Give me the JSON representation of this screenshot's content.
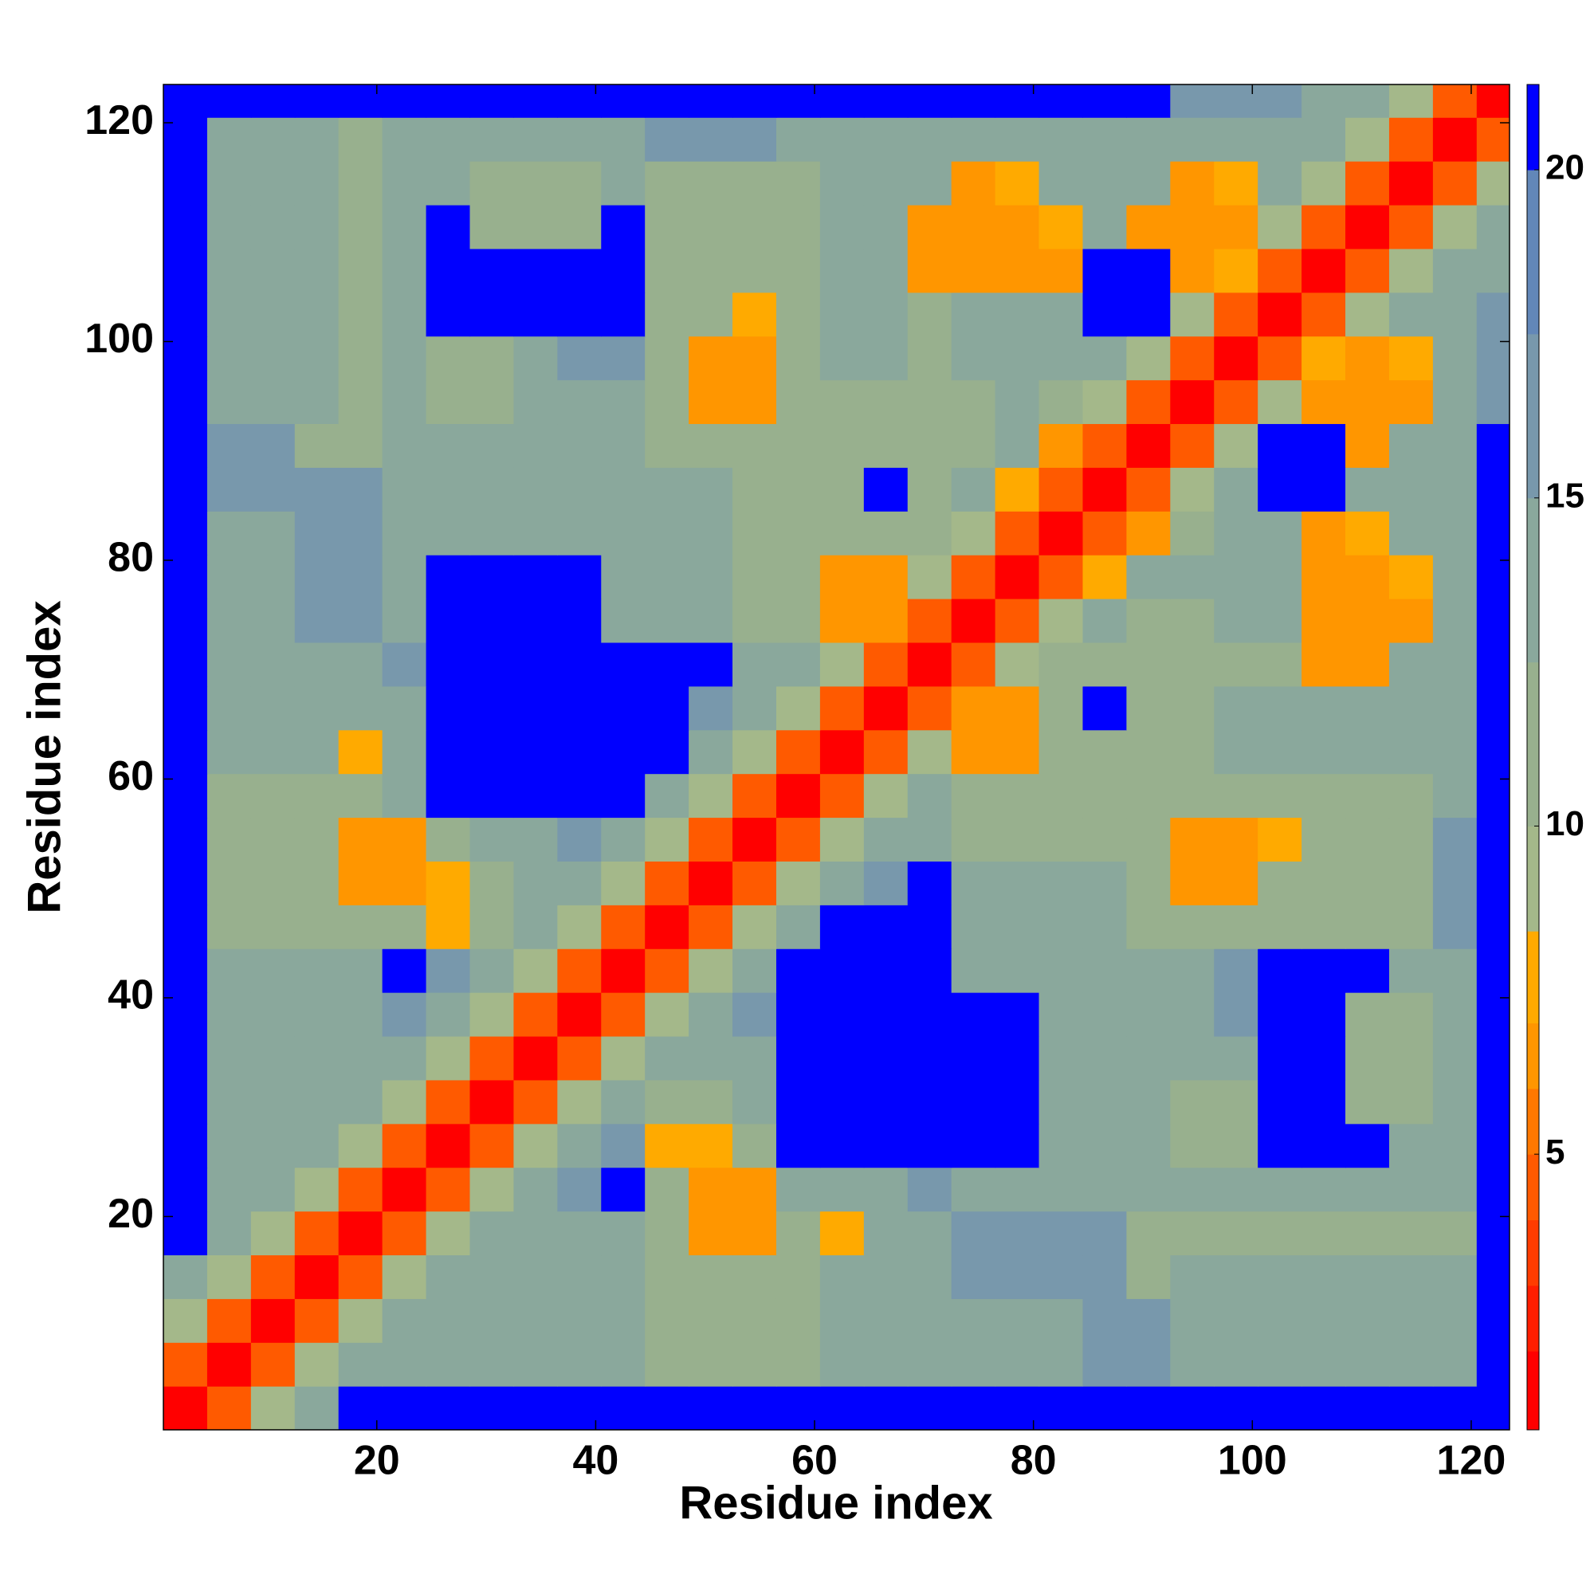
{
  "chart_data": {
    "type": "heatmap",
    "xlabel": "Residue index",
    "ylabel": "Residue index",
    "xlim": [
      0.5,
      123.5
    ],
    "ylim": [
      0.5,
      123.5
    ],
    "xticks": [
      20,
      40,
      60,
      80,
      100,
      120
    ],
    "yticks": [
      20,
      40,
      60,
      80,
      100,
      120
    ],
    "bins": [
      0.5,
      4.5,
      8.5,
      12.5,
      16.5,
      20.5,
      24.5,
      28.5,
      32.5,
      36.5,
      40.5,
      44.5,
      48.5,
      52.5,
      56.5,
      60.5,
      64.5,
      68.5,
      72.5,
      76.5,
      80.5,
      84.5,
      88.5,
      92.5,
      96.5,
      100.5,
      104.5,
      108.5,
      112.5,
      116.5,
      120.5,
      124.5
    ],
    "colorbar": {
      "lim": [
        0.8,
        21.3
      ],
      "ticks": [
        5,
        10,
        15,
        20
      ],
      "stops": [
        {
          "to": 2,
          "color": "#ff0000"
        },
        {
          "to": 3,
          "color": "#ff1e00"
        },
        {
          "to": 4,
          "color": "#ff3c00"
        },
        {
          "to": 5,
          "color": "#ff5a00"
        },
        {
          "to": 6,
          "color": "#ff7800"
        },
        {
          "to": 7,
          "color": "#ff9600"
        },
        {
          "to": 8.4,
          "color": "#ffaa00"
        },
        {
          "to": 10,
          "color": "#a4b88a"
        },
        {
          "to": 12.5,
          "color": "#98b08e"
        },
        {
          "to": 15,
          "color": "#8aa89c"
        },
        {
          "to": 17.5,
          "color": "#7898ac"
        },
        {
          "to": 20,
          "color": "#6287b8"
        },
        {
          "to": 21.3,
          "color": "#0000ff"
        }
      ]
    },
    "z": [
      [
        2,
        5,
        10,
        15,
        21,
        21,
        21,
        21,
        21,
        21,
        21,
        21,
        21,
        21,
        21,
        21,
        21,
        21,
        21,
        21,
        21,
        21,
        21,
        21,
        21,
        21,
        21,
        21,
        21,
        21,
        21
      ],
      [
        5,
        2,
        5,
        10,
        15,
        13,
        13,
        13,
        13,
        13,
        13,
        12,
        12,
        12,
        12,
        13,
        13,
        13,
        14,
        14,
        14,
        16,
        16,
        13,
        13,
        13,
        13,
        13,
        13,
        13,
        21
      ],
      [
        10,
        5,
        2,
        5,
        10,
        15,
        13,
        13,
        13,
        13,
        13,
        12,
        12,
        12,
        12,
        13,
        13,
        13,
        14,
        14,
        14,
        16,
        16,
        13,
        13,
        13,
        13,
        13,
        13,
        13,
        21
      ],
      [
        15,
        10,
        5,
        2,
        5,
        10,
        15,
        13,
        13,
        13,
        13,
        12,
        12,
        12,
        12,
        13,
        13,
        13,
        16,
        16,
        16,
        16,
        12,
        13,
        13,
        13,
        13,
        13,
        13,
        13,
        21
      ],
      [
        21,
        15,
        10,
        5,
        2,
        5,
        10,
        15,
        13,
        13,
        13,
        12,
        7,
        7,
        12,
        8,
        13,
        13,
        16,
        16,
        16,
        16,
        12,
        12,
        12,
        12,
        12,
        12,
        12,
        12,
        21
      ],
      [
        21,
        13,
        15,
        10,
        5,
        2,
        5,
        10,
        15,
        16,
        21,
        12,
        7,
        7,
        13,
        14,
        15,
        16,
        15,
        15,
        15,
        15,
        15,
        13,
        13,
        13,
        13,
        13,
        13,
        13,
        21
      ],
      [
        21,
        13,
        13,
        15,
        10,
        5,
        2,
        5,
        10,
        15,
        16,
        8,
        8,
        12,
        21,
        21,
        21,
        21,
        21,
        21,
        13,
        13,
        13,
        12,
        12,
        21,
        21,
        21,
        13,
        13,
        21
      ],
      [
        21,
        13,
        13,
        13,
        15,
        10,
        5,
        2,
        5,
        10,
        14,
        12,
        12,
        13,
        21,
        21,
        21,
        21,
        21,
        21,
        13,
        13,
        13,
        12,
        12,
        21,
        21,
        11,
        11,
        13,
        21
      ],
      [
        21,
        13,
        13,
        13,
        13,
        15,
        10,
        5,
        2,
        5,
        10,
        14,
        13,
        14,
        21,
        21,
        21,
        21,
        21,
        21,
        13,
        14,
        14,
        14,
        15,
        21,
        21,
        11,
        11,
        13,
        21
      ],
      [
        21,
        13,
        13,
        13,
        13,
        16,
        15,
        10,
        5,
        2,
        5,
        9,
        14,
        16,
        21,
        21,
        21,
        21,
        21,
        21,
        13,
        14,
        14,
        14,
        16,
        21,
        21,
        11,
        12,
        13,
        21
      ],
      [
        21,
        13,
        13,
        13,
        13,
        21,
        16,
        14,
        10,
        5,
        2,
        5,
        10,
        15,
        21,
        21,
        21,
        21,
        14,
        14,
        14,
        14,
        13,
        14,
        16,
        21,
        21,
        21,
        13,
        13,
        21
      ],
      [
        21,
        12,
        12,
        12,
        12,
        12,
        8,
        12,
        14,
        9,
        5,
        2,
        5,
        10,
        15,
        21,
        21,
        21,
        14,
        14,
        14,
        14,
        12,
        12,
        12,
        12,
        12,
        12,
        12,
        16,
        21
      ],
      [
        21,
        12,
        12,
        12,
        7,
        7,
        8,
        12,
        13,
        14,
        10,
        5,
        2,
        5,
        10,
        15,
        16,
        21,
        14,
        14,
        14,
        14,
        12,
        7,
        7,
        12,
        12,
        12,
        12,
        16,
        21
      ],
      [
        21,
        12,
        12,
        12,
        7,
        7,
        12,
        13,
        14,
        16,
        15,
        10,
        5,
        2,
        5,
        9,
        14,
        15,
        12,
        12,
        12,
        12,
        12,
        7,
        7,
        8,
        12,
        12,
        12,
        16,
        21
      ],
      [
        21,
        12,
        12,
        12,
        12,
        13,
        21,
        21,
        21,
        21,
        21,
        15,
        10,
        5,
        2,
        5,
        10,
        14,
        12,
        12,
        12,
        12,
        12,
        12,
        12,
        12,
        12,
        12,
        12,
        15,
        21
      ],
      [
        21,
        13,
        13,
        13,
        8,
        14,
        21,
        21,
        21,
        21,
        21,
        21,
        15,
        9,
        5,
        2,
        5,
        10,
        7,
        7,
        12,
        12,
        12,
        12,
        14,
        14,
        14,
        14,
        14,
        14,
        21
      ],
      [
        21,
        13,
        13,
        13,
        13,
        15,
        21,
        21,
        21,
        21,
        21,
        21,
        16,
        14,
        10,
        5,
        2,
        5,
        7,
        7,
        12,
        21,
        12,
        12,
        14,
        14,
        14,
        14,
        14,
        14,
        21
      ],
      [
        21,
        13,
        13,
        13,
        13,
        16,
        21,
        21,
        21,
        21,
        21,
        21,
        21,
        15,
        14,
        10,
        5,
        2,
        5,
        10,
        12,
        12,
        12,
        12,
        12,
        12,
        7,
        7,
        14,
        14,
        21
      ],
      [
        21,
        14,
        14,
        16,
        16,
        15,
        21,
        21,
        21,
        21,
        14,
        14,
        14,
        12,
        12,
        7,
        7,
        5,
        2,
        5,
        9,
        13,
        12,
        12,
        14,
        14,
        7,
        7,
        7,
        14,
        21
      ],
      [
        21,
        14,
        14,
        16,
        16,
        15,
        21,
        21,
        21,
        21,
        14,
        14,
        14,
        12,
        12,
        7,
        7,
        10,
        5,
        2,
        5,
        8,
        13,
        14,
        15,
        15,
        7,
        7,
        8,
        15,
        21
      ],
      [
        21,
        14,
        14,
        16,
        16,
        15,
        13,
        13,
        13,
        13,
        14,
        14,
        14,
        12,
        12,
        12,
        12,
        12,
        9,
        5,
        2,
        5,
        7,
        11,
        15,
        15,
        7,
        8,
        13,
        13,
        21
      ],
      [
        21,
        16,
        16,
        16,
        16,
        15,
        13,
        13,
        14,
        14,
        14,
        14,
        14,
        12,
        12,
        12,
        21,
        12,
        13,
        8,
        5,
        2,
        5,
        9,
        14,
        21,
        21,
        14,
        13,
        13,
        21
      ],
      [
        21,
        16,
        16,
        12,
        12,
        15,
        13,
        13,
        14,
        14,
        13,
        12,
        12,
        12,
        12,
        12,
        12,
        12,
        12,
        13,
        7,
        5,
        2,
        5,
        10,
        21,
        21,
        7,
        13,
        13,
        21
      ],
      [
        21,
        13,
        13,
        13,
        12,
        13,
        12,
        12,
        14,
        14,
        14,
        12,
        7,
        7,
        12,
        12,
        12,
        12,
        12,
        14,
        11,
        9,
        5,
        2,
        5,
        10,
        7,
        7,
        7,
        13,
        16
      ],
      [
        21,
        13,
        13,
        13,
        12,
        13,
        12,
        12,
        15,
        16,
        16,
        12,
        7,
        7,
        12,
        14,
        14,
        12,
        14,
        15,
        15,
        14,
        10,
        5,
        2,
        5,
        8,
        7,
        8,
        14,
        16
      ],
      [
        21,
        13,
        13,
        13,
        12,
        13,
        21,
        21,
        21,
        21,
        21,
        12,
        12,
        8,
        12,
        14,
        14,
        12,
        14,
        15,
        15,
        21,
        21,
        10,
        5,
        2,
        5,
        10,
        14,
        15,
        16
      ],
      [
        21,
        13,
        13,
        13,
        12,
        13,
        21,
        21,
        21,
        21,
        21,
        12,
        12,
        12,
        12,
        14,
        14,
        7,
        7,
        7,
        7,
        21,
        21,
        7,
        8,
        5,
        2,
        5,
        10,
        14,
        15
      ],
      [
        21,
        13,
        13,
        13,
        12,
        13,
        21,
        11,
        11,
        11,
        21,
        12,
        12,
        12,
        12,
        14,
        14,
        7,
        7,
        7,
        8,
        14,
        7,
        7,
        7,
        10,
        5,
        2,
        5,
        10,
        14
      ],
      [
        21,
        13,
        13,
        13,
        12,
        13,
        13,
        11,
        11,
        12,
        13,
        12,
        12,
        12,
        12,
        14,
        14,
        14,
        7,
        8,
        13,
        13,
        13,
        7,
        8,
        14,
        10,
        5,
        2,
        5,
        10
      ],
      [
        21,
        13,
        13,
        13,
        12,
        13,
        13,
        13,
        13,
        13,
        13,
        16,
        16,
        16,
        15,
        14,
        14,
        14,
        14,
        15,
        13,
        13,
        13,
        13,
        14,
        15,
        14,
        10,
        5,
        2,
        5
      ],
      [
        21,
        21,
        21,
        21,
        21,
        21,
        21,
        21,
        21,
        21,
        21,
        21,
        21,
        21,
        21,
        21,
        21,
        21,
        21,
        21,
        21,
        21,
        21,
        16,
        16,
        16,
        15,
        14,
        10,
        5,
        2
      ]
    ]
  }
}
